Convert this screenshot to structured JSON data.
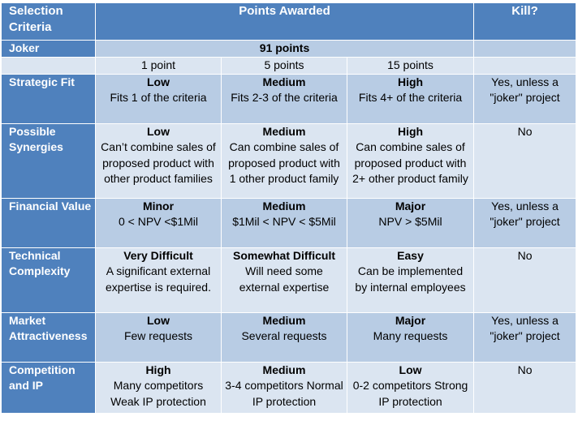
{
  "header": {
    "selection_criteria": "Selection Criteria",
    "points_awarded": "Points Awarded",
    "kill": "Kill?"
  },
  "joker": {
    "label": "Joker",
    "points": "91 points"
  },
  "levels": [
    "1 point",
    "5 points",
    "15 points"
  ],
  "rows": [
    {
      "label": "Strategic Fit",
      "cells": [
        {
          "title": "Low",
          "text": "Fits 1 of the criteria"
        },
        {
          "title": "Medium",
          "text": "Fits 2-3 of the criteria"
        },
        {
          "title": "High",
          "text": "Fits  4+ of the criteria"
        }
      ],
      "kill": "Yes, unless a \"joker\" project"
    },
    {
      "label": "Possible Synergies",
      "cells": [
        {
          "title": "Low",
          "text": "Can’t combine sales of proposed product with other product families"
        },
        {
          "title": "Medium",
          "text": "Can combine sales of proposed product with 1 other product family"
        },
        {
          "title": "High",
          "text": "Can combine sales of proposed product with 2+ other product family"
        }
      ],
      "kill": "No"
    },
    {
      "label": "Financial Value",
      "cells": [
        {
          "title": "Minor",
          "text": "0 < NPV <$1Mil"
        },
        {
          "title": "Medium",
          "text": "$1Mil < NPV < $5Mil"
        },
        {
          "title": "Major",
          "text": "NPV > $5Mil"
        }
      ],
      "kill": "Yes, unless a \"joker\" project"
    },
    {
      "label": "Technical Complexity",
      "cells": [
        {
          "title": "Very Difficult",
          "text": "A significant external expertise is required."
        },
        {
          "title": "Somewhat Difficult",
          "text": "Will need some external expertise"
        },
        {
          "title": "Easy",
          "text": "Can be implemented by internal employees"
        }
      ],
      "kill": "No"
    },
    {
      "label": "Market Attractiveness",
      "cells": [
        {
          "title": "Low",
          "text": "Few requests"
        },
        {
          "title": "Medium",
          "text": "Several requests"
        },
        {
          "title": "Major",
          "text": "Many requests"
        }
      ],
      "kill": "Yes, unless a \"joker\" project"
    },
    {
      "label": "Competition and IP",
      "cells": [
        {
          "title": "High",
          "text": "Many competitors Weak IP protection"
        },
        {
          "title": "Medium",
          "text": "3-4 competitors Normal IP protection"
        },
        {
          "title": "Low",
          "text": "0-2 competitors Strong IP protection"
        }
      ],
      "kill": "No"
    }
  ]
}
